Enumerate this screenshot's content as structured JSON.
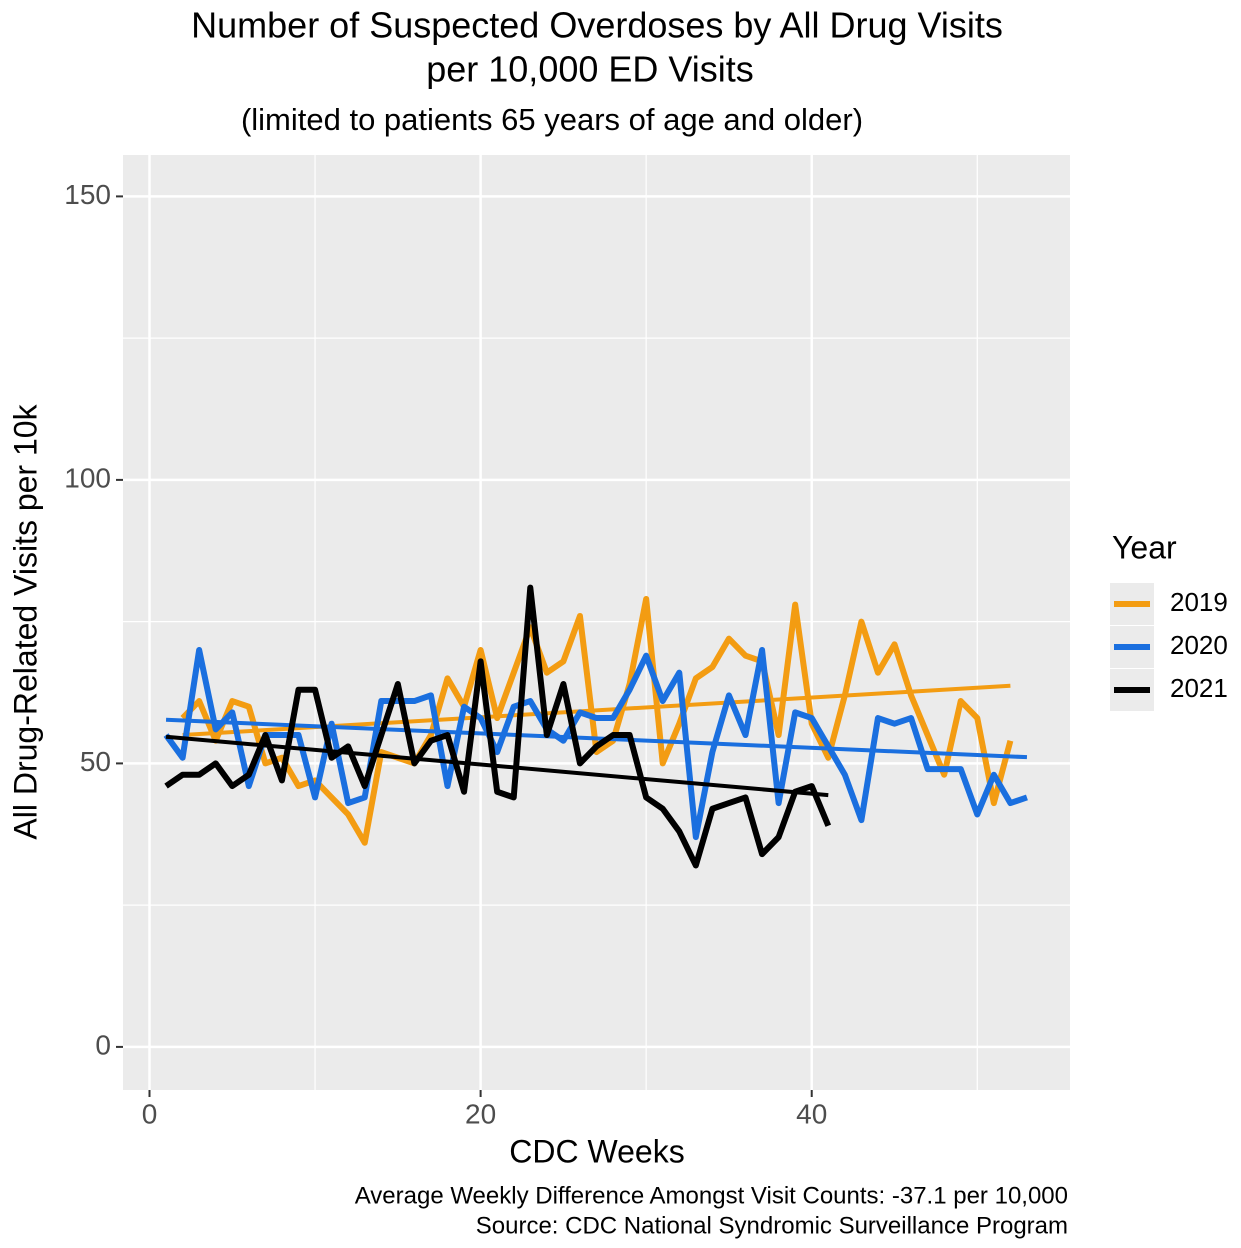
{
  "chart_data": {
    "type": "line",
    "title": [
      "Number of Suspected Overdoses by All Drug Visits",
      "per 10,000 ED Visits"
    ],
    "subtitle": "(limited to patients 65 years of age and older)",
    "x_label": "CDC Weeks",
    "y_label": "All Drug-Related Visits per 10k",
    "caption": [
      "Average Weekly Difference Amongst Visit Counts: -37.1 per 10,000",
      "Source: CDC National Syndromic Surveillance Program"
    ],
    "legend_title": "Year",
    "legend_position": "right",
    "grid": true,
    "xlim": [
      -1.6,
      55.6
    ],
    "ylim": [
      -7.6,
      157.3
    ],
    "xticks": [
      0,
      20,
      40
    ],
    "yticks": [
      0,
      50,
      100,
      150
    ],
    "x_minor_ticks": [
      10,
      30,
      50
    ],
    "y_minor_ticks": [
      25,
      75,
      125
    ],
    "series": [
      {
        "name": "2019",
        "color": "#f39c12",
        "x": [
          2,
          3,
          4,
          5,
          6,
          7,
          8,
          9,
          10,
          11,
          12,
          13,
          14,
          15,
          16,
          17,
          18,
          19,
          20,
          21,
          22,
          23,
          24,
          25,
          26,
          27,
          28,
          29,
          30,
          31,
          32,
          33,
          34,
          35,
          36,
          37,
          38,
          39,
          40,
          41,
          42,
          43,
          44,
          45,
          46,
          47,
          48,
          49,
          50,
          51,
          52
        ],
        "values": [
          58,
          61,
          54,
          61,
          60,
          50,
          51,
          46,
          47,
          44,
          41,
          36,
          52,
          51,
          50,
          55,
          65,
          60,
          70,
          58,
          66,
          74,
          66,
          68,
          76,
          52,
          54,
          64,
          79,
          50,
          57,
          65,
          67,
          72,
          69,
          68,
          55,
          78,
          57,
          51,
          62,
          75,
          66,
          71,
          62,
          55,
          48,
          61,
          58,
          43,
          54
        ],
        "trend": {
          "x": [
            2,
            52
          ],
          "values": [
            55,
            63.7
          ]
        }
      },
      {
        "name": "2020",
        "color": "#1a6fdf",
        "x": [
          1,
          2,
          3,
          4,
          5,
          6,
          7,
          8,
          9,
          10,
          11,
          12,
          13,
          14,
          15,
          16,
          17,
          18,
          19,
          20,
          21,
          22,
          23,
          24,
          25,
          26,
          27,
          28,
          29,
          30,
          31,
          32,
          33,
          34,
          35,
          36,
          37,
          38,
          39,
          40,
          41,
          42,
          43,
          44,
          45,
          46,
          47,
          48,
          49,
          50,
          51,
          52,
          53
        ],
        "values": [
          55,
          51,
          70,
          56,
          59,
          46,
          55,
          55,
          55,
          44,
          57,
          43,
          44,
          61,
          61,
          61,
          62,
          46,
          60,
          58,
          52,
          60,
          61,
          56,
          54,
          59,
          58,
          58,
          63,
          69,
          61,
          66,
          37,
          52,
          62,
          55,
          70,
          43,
          59,
          58,
          53,
          48,
          40,
          58,
          57,
          58,
          49,
          49,
          49,
          41,
          48,
          43,
          44
        ],
        "trend": {
          "x": [
            1,
            53
          ],
          "values": [
            57.7,
            51.1
          ]
        }
      },
      {
        "name": "2021",
        "color": "#000000",
        "x": [
          1,
          2,
          3,
          4,
          5,
          6,
          7,
          8,
          9,
          10,
          11,
          12,
          13,
          14,
          15,
          16,
          17,
          18,
          19,
          20,
          21,
          22,
          23,
          24,
          25,
          26,
          27,
          28,
          29,
          30,
          31,
          32,
          33,
          34,
          35,
          36,
          37,
          38,
          39,
          40,
          41
        ],
        "values": [
          46,
          48,
          48,
          50,
          46,
          48,
          55,
          47,
          63,
          63,
          51,
          53,
          46,
          55,
          64,
          50,
          54,
          55,
          45,
          68,
          45,
          44,
          81,
          55,
          64,
          50,
          53,
          55,
          55,
          44,
          42,
          38,
          32,
          42,
          43,
          44,
          34,
          37,
          45,
          46,
          39
        ],
        "trend": {
          "x": [
            1,
            41
          ],
          "values": [
            54.7,
            44.4
          ]
        }
      }
    ]
  }
}
